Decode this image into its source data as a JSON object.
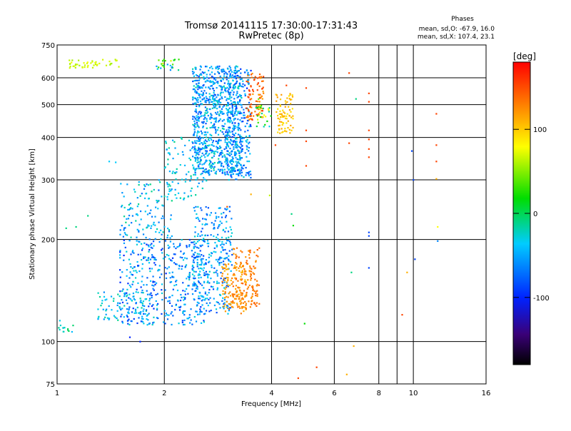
{
  "chart_data": {
    "type": "scatter",
    "title": "Tromsø 20141115 17:30:00-17:31:43",
    "subtitle": "RwPretec (8p)",
    "stats": {
      "title": "Phases",
      "line1": "mean, sd,O: -67.9, 16.0",
      "line2": "mean, sd,X: 107.4, 23.1"
    },
    "xlabel": "Frequency [MHz]",
    "ylabel": "Stationary phase Virtual Height [km]",
    "x_scale": "log",
    "y_scale": "log",
    "xlim": [
      1,
      16
    ],
    "ylim": [
      75,
      750
    ],
    "x_ticks": [
      1,
      2,
      4,
      6,
      8,
      10,
      16
    ],
    "y_ticks": [
      75,
      100,
      200,
      300,
      400,
      500,
      600,
      750
    ],
    "grid": true,
    "colorbar": {
      "title": "[deg]",
      "range": [
        -180,
        180
      ],
      "ticks": [
        100,
        0,
        -100
      ]
    },
    "clusters": [
      {
        "x": [
          1.08,
          1.5
        ],
        "y": [
          640,
          680
        ],
        "n": 45,
        "phase": [
          30,
          60
        ]
      },
      {
        "x": [
          1.0,
          1.12
        ],
        "y": [
          106,
          116
        ],
        "n": 14,
        "phase": [
          -70,
          -30
        ]
      },
      {
        "x": [
          1.3,
          1.8
        ],
        "y": [
          113,
          140
        ],
        "n": 90,
        "phase": [
          -80,
          -40
        ]
      },
      {
        "x": [
          1.5,
          2.6
        ],
        "y": [
          112,
          200
        ],
        "n": 420,
        "phase": [
          -110,
          -50
        ]
      },
      {
        "x": [
          1.5,
          2.1
        ],
        "y": [
          200,
          300
        ],
        "n": 130,
        "phase": [
          -90,
          -40
        ]
      },
      {
        "x": [
          1.9,
          2.2
        ],
        "y": [
          630,
          680
        ],
        "n": 25,
        "phase": [
          -90,
          60
        ]
      },
      {
        "x": [
          2.0,
          2.7
        ],
        "y": [
          260,
          400
        ],
        "n": 100,
        "phase": [
          -80,
          -40
        ]
      },
      {
        "x": [
          2.4,
          3.1
        ],
        "y": [
          120,
          250
        ],
        "n": 320,
        "phase": [
          -100,
          -50
        ]
      },
      {
        "x": [
          2.4,
          3.3
        ],
        "y": [
          310,
          650
        ],
        "n": 900,
        "phase": [
          -100,
          -45
        ]
      },
      {
        "x": [
          3.0,
          3.5
        ],
        "y": [
          300,
          640
        ],
        "n": 200,
        "phase": [
          -110,
          -50
        ]
      },
      {
        "x": [
          3.4,
          3.8
        ],
        "y": [
          450,
          620
        ],
        "n": 90,
        "phase": [
          110,
          160
        ]
      },
      {
        "x": [
          2.9,
          3.4
        ],
        "y": [
          120,
          170
        ],
        "n": 110,
        "phase": [
          90,
          130
        ]
      },
      {
        "x": [
          3.1,
          3.7
        ],
        "y": [
          125,
          190
        ],
        "n": 150,
        "phase": [
          110,
          140
        ]
      },
      {
        "x": [
          3.6,
          4.0
        ],
        "y": [
          430,
          520
        ],
        "n": 30,
        "phase": [
          -60,
          90
        ]
      },
      {
        "x": [
          4.1,
          4.6
        ],
        "y": [
          410,
          540
        ],
        "n": 80,
        "phase": [
          70,
          110
        ]
      }
    ],
    "points": [
      {
        "x": 1.13,
        "y": 218,
        "phase": -40
      },
      {
        "x": 1.06,
        "y": 216,
        "phase": -40
      },
      {
        "x": 1.22,
        "y": 235,
        "phase": -40
      },
      {
        "x": 1.4,
        "y": 340,
        "phase": -60
      },
      {
        "x": 1.46,
        "y": 338,
        "phase": -60
      },
      {
        "x": 1.6,
        "y": 103,
        "phase": -110
      },
      {
        "x": 1.71,
        "y": 100,
        "phase": -110
      },
      {
        "x": 3.0,
        "y": 250,
        "phase": 140
      },
      {
        "x": 3.5,
        "y": 272,
        "phase": 100
      },
      {
        "x": 3.95,
        "y": 270,
        "phase": 40
      },
      {
        "x": 4.55,
        "y": 238,
        "phase": -40
      },
      {
        "x": 4.6,
        "y": 220,
        "phase": -20
      },
      {
        "x": 4.1,
        "y": 380,
        "phase": 150
      },
      {
        "x": 4.4,
        "y": 570,
        "phase": 150
      },
      {
        "x": 5.0,
        "y": 560,
        "phase": 150
      },
      {
        "x": 5.0,
        "y": 420,
        "phase": 150
      },
      {
        "x": 5.0,
        "y": 330,
        "phase": 150
      },
      {
        "x": 5.0,
        "y": 390,
        "phase": 150
      },
      {
        "x": 4.75,
        "y": 78,
        "phase": 150
      },
      {
        "x": 5.35,
        "y": 84,
        "phase": 150
      },
      {
        "x": 4.95,
        "y": 113,
        "phase": -20
      },
      {
        "x": 6.6,
        "y": 620,
        "phase": 150
      },
      {
        "x": 6.9,
        "y": 520,
        "phase": -40
      },
      {
        "x": 6.6,
        "y": 385,
        "phase": 150
      },
      {
        "x": 6.7,
        "y": 160,
        "phase": -40
      },
      {
        "x": 6.8,
        "y": 97,
        "phase": 100
      },
      {
        "x": 6.5,
        "y": 80,
        "phase": 100
      },
      {
        "x": 7.5,
        "y": 540,
        "phase": 150
      },
      {
        "x": 7.5,
        "y": 510,
        "phase": 150
      },
      {
        "x": 7.5,
        "y": 420,
        "phase": 150
      },
      {
        "x": 7.5,
        "y": 395,
        "phase": 150
      },
      {
        "x": 7.5,
        "y": 370,
        "phase": 150
      },
      {
        "x": 7.5,
        "y": 350,
        "phase": 150
      },
      {
        "x": 7.5,
        "y": 210,
        "phase": -100
      },
      {
        "x": 7.5,
        "y": 205,
        "phase": -100
      },
      {
        "x": 7.5,
        "y": 165,
        "phase": -100
      },
      {
        "x": 9.3,
        "y": 120,
        "phase": 150
      },
      {
        "x": 9.6,
        "y": 160,
        "phase": 100
      },
      {
        "x": 9.9,
        "y": 365,
        "phase": -100
      },
      {
        "x": 10.0,
        "y": 300,
        "phase": -100
      },
      {
        "x": 10.1,
        "y": 175,
        "phase": -100
      },
      {
        "x": 11.6,
        "y": 470,
        "phase": 150
      },
      {
        "x": 11.6,
        "y": 380,
        "phase": 150
      },
      {
        "x": 11.6,
        "y": 340,
        "phase": 150
      },
      {
        "x": 11.6,
        "y": 302,
        "phase": 100
      },
      {
        "x": 11.7,
        "y": 218,
        "phase": 60
      },
      {
        "x": 11.7,
        "y": 198,
        "phase": -80
      }
    ]
  }
}
